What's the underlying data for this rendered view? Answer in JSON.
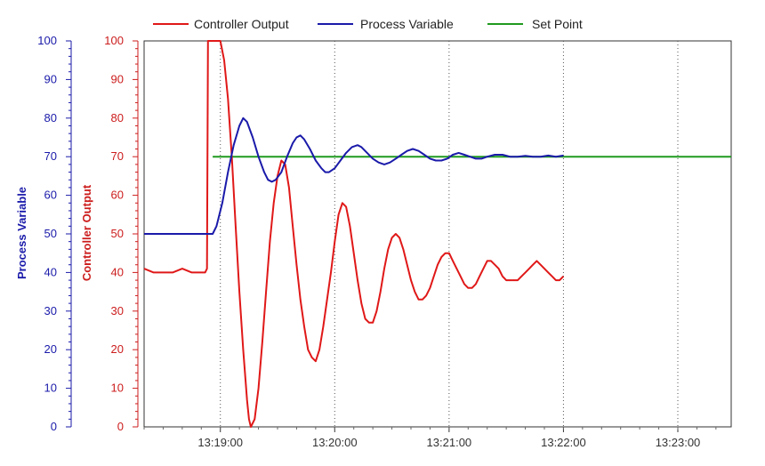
{
  "chart_data": {
    "type": "line",
    "legend": {
      "placement": "top",
      "entries": [
        {
          "label": "Controller Output",
          "color": "#e01818"
        },
        {
          "label": "Process Variable",
          "color": "#1a1aaa"
        },
        {
          "label": "Set Point",
          "color": "#1f9a1f"
        }
      ]
    },
    "x_axis": {
      "ticks": [
        {
          "t": 1140,
          "label": "13:19:00"
        },
        {
          "t": 1200,
          "label": "13:20:00"
        },
        {
          "t": 1260,
          "label": "13:21:00"
        },
        {
          "t": 1320,
          "label": "13:22:00"
        },
        {
          "t": 1380,
          "label": "13:23:00"
        }
      ],
      "range_seconds_after_13_00": [
        1100,
        1408
      ]
    },
    "y_axes": [
      {
        "title": "Process Variable",
        "color": "#1a1aaa",
        "range": [
          0,
          100
        ],
        "ticks": [
          "0",
          "10",
          "20",
          "30",
          "40",
          "50",
          "60",
          "70",
          "80",
          "90",
          "100"
        ]
      },
      {
        "title": "Controller Output",
        "color": "#cc1c1c",
        "range": [
          0,
          100
        ],
        "ticks": [
          "0",
          "10",
          "20",
          "30",
          "40",
          "50",
          "60",
          "70",
          "80",
          "90",
          "100"
        ]
      }
    ],
    "grid": {
      "vertical_dotted": true,
      "horizontal": false
    },
    "series": [
      {
        "name": "Controller Output",
        "color": "#e01818",
        "points": [
          [
            1100,
            41
          ],
          [
            1105,
            40
          ],
          [
            1110,
            40
          ],
          [
            1115,
            40
          ],
          [
            1120,
            41
          ],
          [
            1125,
            40
          ],
          [
            1130,
            40
          ],
          [
            1132,
            40
          ],
          [
            1133,
            41
          ],
          [
            1133.5,
            100
          ],
          [
            1134,
            100
          ],
          [
            1136,
            100
          ],
          [
            1138,
            100
          ],
          [
            1139,
            100
          ],
          [
            1140,
            100
          ],
          [
            1142,
            95
          ],
          [
            1144,
            85
          ],
          [
            1146,
            70
          ],
          [
            1148,
            52
          ],
          [
            1150,
            35
          ],
          [
            1152,
            20
          ],
          [
            1154,
            7
          ],
          [
            1155,
            2
          ],
          [
            1156,
            0
          ],
          [
            1158,
            2
          ],
          [
            1160,
            10
          ],
          [
            1162,
            22
          ],
          [
            1164,
            35
          ],
          [
            1166,
            48
          ],
          [
            1168,
            58
          ],
          [
            1170,
            65
          ],
          [
            1172,
            69
          ],
          [
            1174,
            68
          ],
          [
            1176,
            62
          ],
          [
            1178,
            52
          ],
          [
            1180,
            42
          ],
          [
            1182,
            33
          ],
          [
            1184,
            26
          ],
          [
            1186,
            20
          ],
          [
            1188,
            18
          ],
          [
            1190,
            17
          ],
          [
            1192,
            20
          ],
          [
            1194,
            26
          ],
          [
            1196,
            33
          ],
          [
            1198,
            40
          ],
          [
            1200,
            48
          ],
          [
            1202,
            55
          ],
          [
            1204,
            58
          ],
          [
            1206,
            57
          ],
          [
            1208,
            52
          ],
          [
            1210,
            45
          ],
          [
            1212,
            38
          ],
          [
            1214,
            32
          ],
          [
            1216,
            28
          ],
          [
            1218,
            27
          ],
          [
            1220,
            27
          ],
          [
            1222,
            30
          ],
          [
            1224,
            35
          ],
          [
            1226,
            41
          ],
          [
            1228,
            46
          ],
          [
            1230,
            49
          ],
          [
            1232,
            50
          ],
          [
            1234,
            49
          ],
          [
            1236,
            46
          ],
          [
            1238,
            42
          ],
          [
            1240,
            38
          ],
          [
            1242,
            35
          ],
          [
            1244,
            33
          ],
          [
            1246,
            33
          ],
          [
            1248,
            34
          ],
          [
            1250,
            36
          ],
          [
            1252,
            39
          ],
          [
            1254,
            42
          ],
          [
            1256,
            44
          ],
          [
            1258,
            45
          ],
          [
            1260,
            45
          ],
          [
            1262,
            43
          ],
          [
            1264,
            41
          ],
          [
            1266,
            39
          ],
          [
            1268,
            37
          ],
          [
            1270,
            36
          ],
          [
            1272,
            36
          ],
          [
            1274,
            37
          ],
          [
            1276,
            39
          ],
          [
            1278,
            41
          ],
          [
            1280,
            43
          ],
          [
            1282,
            43
          ],
          [
            1284,
            42
          ],
          [
            1286,
            41
          ],
          [
            1288,
            39
          ],
          [
            1290,
            38
          ],
          [
            1292,
            38
          ],
          [
            1294,
            38
          ],
          [
            1296,
            38
          ],
          [
            1298,
            39
          ],
          [
            1300,
            40
          ],
          [
            1302,
            41
          ],
          [
            1304,
            42
          ],
          [
            1306,
            43
          ],
          [
            1308,
            42
          ],
          [
            1310,
            41
          ],
          [
            1312,
            40
          ],
          [
            1314,
            39
          ],
          [
            1316,
            38
          ],
          [
            1318,
            38
          ],
          [
            1320,
            39
          ]
        ]
      },
      {
        "name": "Process Variable",
        "color": "#1a1aaa",
        "points": [
          [
            1100,
            50
          ],
          [
            1110,
            50
          ],
          [
            1120,
            50
          ],
          [
            1130,
            50
          ],
          [
            1136,
            50
          ],
          [
            1138,
            52
          ],
          [
            1141,
            58
          ],
          [
            1144,
            66
          ],
          [
            1147,
            73
          ],
          [
            1150,
            78
          ],
          [
            1152,
            80
          ],
          [
            1154,
            79
          ],
          [
            1157,
            75
          ],
          [
            1160,
            70
          ],
          [
            1163,
            66
          ],
          [
            1165,
            64
          ],
          [
            1167,
            63.5
          ],
          [
            1169,
            64
          ],
          [
            1172,
            66
          ],
          [
            1175,
            70
          ],
          [
            1178,
            73.5
          ],
          [
            1180,
            75
          ],
          [
            1182,
            75.5
          ],
          [
            1184,
            74.5
          ],
          [
            1187,
            72
          ],
          [
            1190,
            69
          ],
          [
            1193,
            67
          ],
          [
            1195,
            66
          ],
          [
            1197,
            66
          ],
          [
            1200,
            67
          ],
          [
            1203,
            69
          ],
          [
            1206,
            71
          ],
          [
            1209,
            72.5
          ],
          [
            1212,
            73
          ],
          [
            1214,
            72.5
          ],
          [
            1217,
            71
          ],
          [
            1220,
            69.5
          ],
          [
            1223,
            68.5
          ],
          [
            1226,
            68
          ],
          [
            1229,
            68.5
          ],
          [
            1232,
            69.5
          ],
          [
            1235,
            70.5
          ],
          [
            1238,
            71.5
          ],
          [
            1241,
            72
          ],
          [
            1244,
            71.5
          ],
          [
            1247,
            70.5
          ],
          [
            1250,
            69.5
          ],
          [
            1253,
            69
          ],
          [
            1256,
            69
          ],
          [
            1259,
            69.5
          ],
          [
            1262,
            70.5
          ],
          [
            1265,
            71
          ],
          [
            1268,
            70.5
          ],
          [
            1271,
            70
          ],
          [
            1274,
            69.5
          ],
          [
            1277,
            69.5
          ],
          [
            1280,
            70
          ],
          [
            1284,
            70.5
          ],
          [
            1288,
            70.5
          ],
          [
            1292,
            70
          ],
          [
            1296,
            70
          ],
          [
            1300,
            70.2
          ],
          [
            1304,
            70
          ],
          [
            1308,
            70
          ],
          [
            1312,
            70.3
          ],
          [
            1316,
            70
          ],
          [
            1320,
            70.3
          ]
        ]
      },
      {
        "name": "Set Point",
        "color": "#1f9a1f",
        "points": [
          [
            1136,
            70
          ],
          [
            1408,
            70
          ]
        ]
      }
    ]
  }
}
